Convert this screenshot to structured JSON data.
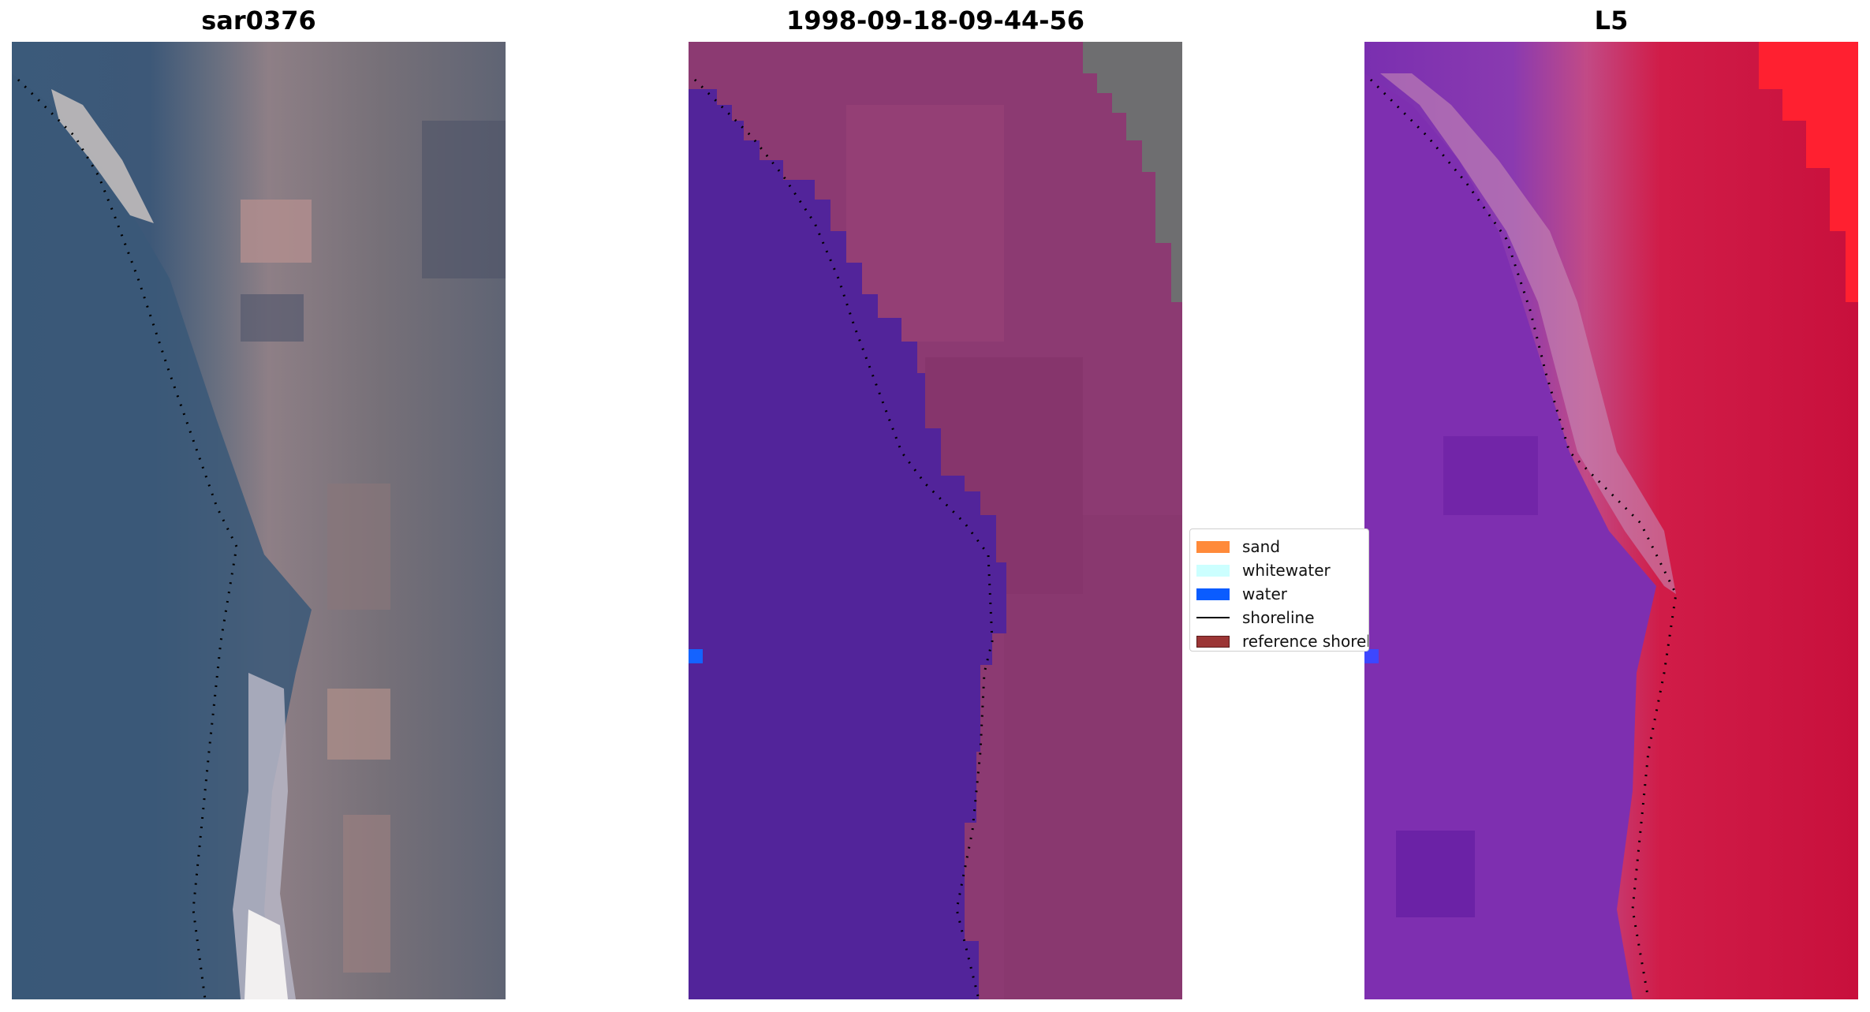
{
  "panels": [
    {
      "title": "sar0376"
    },
    {
      "title": "1998-09-18-09-44-56"
    },
    {
      "title": "L5"
    }
  ],
  "legend": {
    "items": [
      {
        "label": "sand",
        "color": "#ff8a3a",
        "kind": "patch"
      },
      {
        "label": "whitewater",
        "color": "#ccffff",
        "kind": "patch"
      },
      {
        "label": "water",
        "color": "#0a5cff",
        "kind": "patch"
      },
      {
        "label": "shoreline",
        "color": "#000000",
        "kind": "line"
      },
      {
        "label": "reference shoreline",
        "color": "#9b3535",
        "kind": "patch"
      }
    ]
  },
  "colors": {
    "water_class": "#52249a",
    "land_composite": "#8c3a72",
    "cloud_mask": "#6e6e70",
    "ndwi_water": "#7a2fb0",
    "ndwi_land": "#c8103c",
    "water_marker": "#1463ff"
  }
}
